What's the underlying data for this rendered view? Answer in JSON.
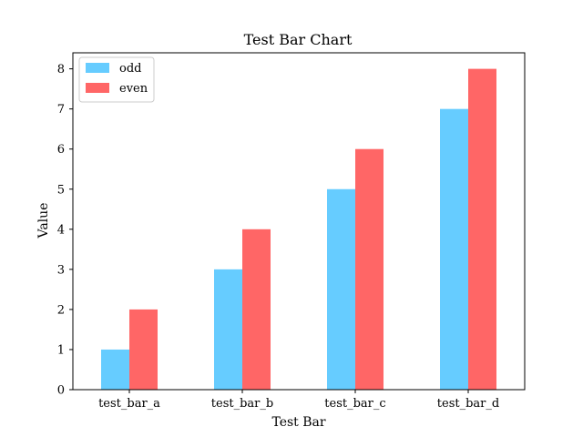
{
  "chart_data": {
    "type": "bar",
    "title": "Test Bar Chart",
    "xlabel": "Test Bar",
    "ylabel": "Value",
    "categories": [
      "test_bar_a",
      "test_bar_b",
      "test_bar_c",
      "test_bar_d"
    ],
    "series": [
      {
        "name": "odd",
        "values": [
          1,
          3,
          5,
          7
        ],
        "color": "#66ccff"
      },
      {
        "name": "even",
        "values": [
          2,
          4,
          6,
          8
        ],
        "color": "#ff6666"
      }
    ],
    "ylim": [
      0,
      8.4
    ],
    "yticks": [
      0,
      1,
      2,
      3,
      4,
      5,
      6,
      7,
      8
    ],
    "legend_position": "top-left",
    "grid": false
  }
}
